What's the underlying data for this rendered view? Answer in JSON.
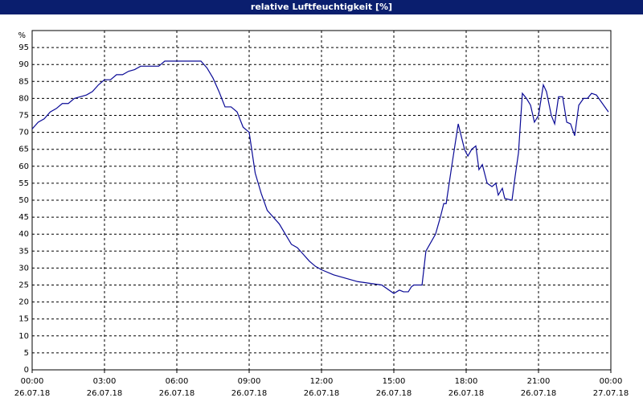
{
  "chart_data": {
    "type": "line",
    "title": "relative Luftfeuchtigkeit [%]",
    "y_label": "%",
    "ylim": [
      0,
      100
    ],
    "yticks": [
      0,
      5,
      10,
      15,
      20,
      25,
      30,
      35,
      40,
      45,
      50,
      55,
      60,
      65,
      70,
      75,
      80,
      85,
      90,
      95
    ],
    "xlim": [
      0,
      24
    ],
    "xticks": [
      {
        "value": 0,
        "label": "00:00"
      },
      {
        "value": 3,
        "label": "03:00"
      },
      {
        "value": 6,
        "label": "06:00"
      },
      {
        "value": 9,
        "label": "09:00"
      },
      {
        "value": 12,
        "label": "12:00"
      },
      {
        "value": 15,
        "label": "15:00"
      },
      {
        "value": 18,
        "label": "18:00"
      },
      {
        "value": 21,
        "label": "21:00"
      },
      {
        "value": 24,
        "label": "00:00"
      }
    ],
    "xtick_dates": [
      "26.07.18",
      "26.07.18",
      "26.07.18",
      "26.07.18",
      "26.07.18",
      "26.07.18",
      "26.07.18",
      "26.07.18",
      "27.07.18"
    ],
    "grid": true,
    "series": [
      {
        "color": "#0a0a96",
        "x": [
          0,
          0.25,
          0.5,
          0.75,
          1,
          1.25,
          1.5,
          1.75,
          2,
          2.25,
          2.5,
          2.75,
          3,
          3.25,
          3.5,
          3.75,
          4,
          4.25,
          4.5,
          5,
          5.25,
          5.5,
          6,
          6.5,
          7,
          7.25,
          7.5,
          7.75,
          8,
          8.25,
          8.5,
          8.75,
          9,
          9.25,
          9.5,
          9.75,
          10,
          10.25,
          10.5,
          10.75,
          11,
          11.25,
          11.5,
          11.75,
          12,
          12.5,
          13,
          13.5,
          14,
          14.5,
          15,
          15.23,
          15.4,
          15.6,
          15.73,
          15.83,
          16.17,
          16.33,
          16.73,
          16.93,
          17.07,
          17.17,
          17.4,
          17.67,
          17.93,
          18.07,
          18.23,
          18.4,
          18.53,
          18.67,
          18.87,
          19.07,
          19.23,
          19.33,
          19.5,
          19.6,
          19.9,
          20.03,
          20.17,
          20.33,
          20.5,
          20.67,
          20.83,
          21,
          21.2,
          21.33,
          21.53,
          21.67,
          21.83,
          22,
          22.17,
          22.33,
          22.5,
          22.67,
          22.87,
          23.03,
          23.2,
          23.4,
          23.6,
          23.9
        ],
        "values": [
          71,
          73,
          74,
          76,
          77,
          78.5,
          78.5,
          80,
          80.5,
          81,
          82,
          84,
          85.5,
          85.5,
          87,
          87,
          88,
          88.5,
          89.5,
          89.5,
          89.5,
          91,
          91,
          91,
          91,
          89,
          86,
          82,
          77.5,
          77.5,
          76,
          71.5,
          70,
          58,
          52,
          47,
          45,
          43,
          40,
          37,
          36,
          34,
          32,
          30.5,
          29.5,
          28,
          27,
          26,
          25.5,
          25,
          22.5,
          23.5,
          23,
          23,
          24.5,
          25,
          25,
          35,
          40,
          45,
          49,
          49,
          60,
          72.5,
          65,
          63,
          65,
          66,
          59,
          60.5,
          55,
          54,
          55,
          51.5,
          53.5,
          50.5,
          50,
          57,
          64,
          81.5,
          80,
          78,
          73,
          75,
          84,
          82,
          75,
          72.5,
          80.5,
          80.5,
          73,
          72.5,
          69,
          78,
          80,
          80,
          81.5,
          81,
          79,
          76
        ]
      }
    ]
  }
}
